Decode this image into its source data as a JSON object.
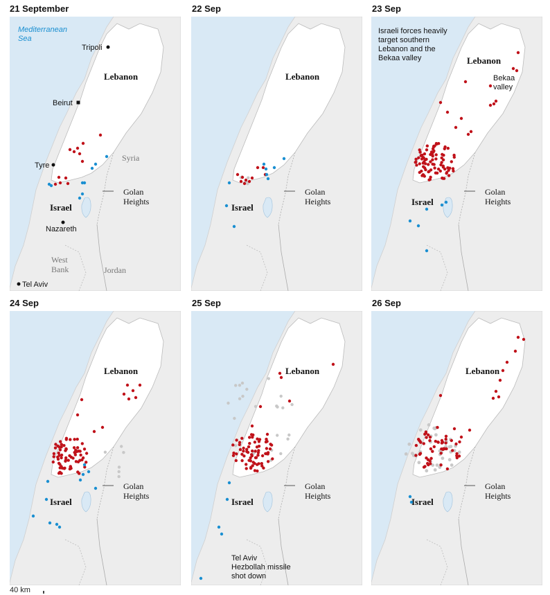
{
  "panels": [
    {
      "title": "21 September",
      "labels": {
        "sea": "Mediterranean\nSea",
        "cities": [
          "Tripoli",
          "Beirut",
          "Tyre",
          "Nazareth",
          "Tel Aviv"
        ],
        "countries": [
          "Lebanon",
          "Syria",
          "Israel",
          "West\nBank",
          "Jordan"
        ],
        "golan": "Golan\nHeights"
      }
    },
    {
      "title": "22 Sep",
      "labels": {
        "countries": [
          "Lebanon",
          "Israel"
        ],
        "golan": "Golan\nHeights"
      }
    },
    {
      "title": "23 Sep",
      "note": "Israeli forces heavily\ntarget southern\nLebanon and the\nBekaa valley",
      "labels": {
        "countries": [
          "Lebanon",
          "Israel"
        ],
        "region": "Bekaa\nvalley",
        "golan": "Golan\nHeights"
      }
    },
    {
      "title": "24 Sep",
      "labels": {
        "countries": [
          "Lebanon",
          "Israel"
        ],
        "golan": "Golan\nHeights"
      }
    },
    {
      "title": "25 Sep",
      "note": "Tel Aviv\nHezbollah missile\nshot down",
      "labels": {
        "countries": [
          "Lebanon",
          "Israel"
        ],
        "golan": "Golan\nHeights"
      }
    },
    {
      "title": "26 Sep",
      "labels": {
        "countries": [
          "Lebanon",
          "Israel"
        ],
        "golan": "Golan\nHeights"
      }
    }
  ],
  "scale": {
    "label": "40 km"
  },
  "colors": {
    "sea": "#d9e9f5",
    "land": "#ededed",
    "lebanon": "#ffffff",
    "strike_israel": "#c0121a",
    "strike_hezbollah": "#1a8fd1",
    "past_strike": "#c8c8c8",
    "sea_label": "#1a8fd1"
  }
}
